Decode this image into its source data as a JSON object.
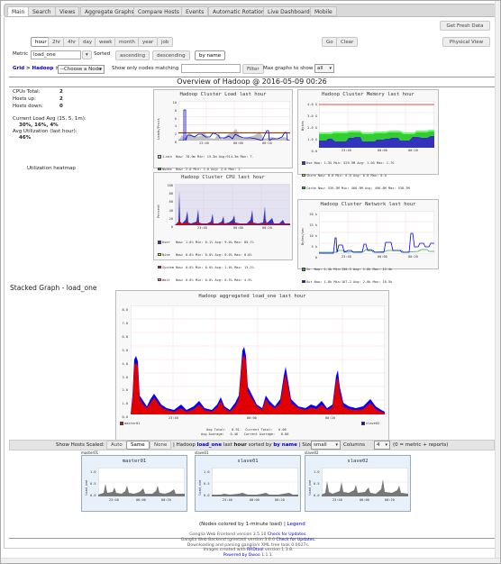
{
  "tabs": [
    "Main",
    "Search",
    "Views",
    "Aggregate Graphs",
    "Compare Hosts",
    "Events",
    "Automatic Rotation",
    "Live Dashboard",
    "Mobile"
  ],
  "get_fresh_data": "Get Fresh Data",
  "physical_view": "Physical View",
  "ranges": [
    "hour",
    "2hr",
    "4hr",
    "day",
    "week",
    "month",
    "year",
    "job"
  ],
  "go": "Go",
  "clear": "Clear",
  "metric_label": "Metric",
  "metric_value": "load_one",
  "sorted_label": "Sorted",
  "sort_options": [
    "ascending",
    "descending",
    "by name"
  ],
  "breadcrumb": {
    "grid": "Grid",
    "sep": ">",
    "cluster": "Hadoop",
    "sep2": ">",
    "node_select": "--Choose a Node"
  },
  "filter_label": "Show only nodes matching",
  "filter_button": "Filter",
  "max_graphs_label": "Max graphs to show",
  "max_graphs_value": "all",
  "overview_title": "Overview of Hadoop @ 2016-05-09 00:26",
  "stats": {
    "cpus_label": "CPUs Total:",
    "cpus": "2",
    "up_label": "Hosts up:",
    "up": "2",
    "down_label": "Hosts down:",
    "down": "0",
    "load_label": "Current Load Avg (15, 5, 1m):",
    "load": "30%, 16%, 4%",
    "util_label": "Avg Utilization (last hour):",
    "util": "46%"
  },
  "heatmap_label": "Utilization heatmap",
  "graphs": {
    "load": {
      "title": "Hadoop Cluster Load last hour",
      "ylabel": "Loads/Procs",
      "yticks": [
        "10",
        "8",
        "6",
        "4",
        "2",
        "0"
      ],
      "xticks": [
        "23:40",
        "00:00",
        "00:20"
      ],
      "legend": [
        {
          "name": "1-min",
          "color": "#c8c8c8",
          "now": "Now: 78.0m",
          "min": "Min: 15.3m",
          "avg": "Avg:914.3m",
          "max": "Max: 7."
        },
        {
          "name": "Nodes",
          "color": "#00c000",
          "now": "Now: 2.0",
          "min": "Min: 2.0",
          "avg": "Avg: 2.0",
          "max": "Max: 2"
        },
        {
          "name": "CPUs",
          "color": "#e00000",
          "now": "Now: 2.0",
          "min": "Min: 2.0",
          "avg": "Avg: 2.0",
          "max": "Max: 2"
        },
        {
          "name": "Procs",
          "color": "#0000e0",
          "now": "Now: 0.0",
          "min": "Min: 0.0",
          "avg": "Avg: 1.1",
          "max": "Max: 13."
        }
      ]
    },
    "memory": {
      "title": "Hadoop Cluster Memory last hour",
      "ylabel": "Bytes",
      "yticks": [
        "4.0 G",
        "3.0 G",
        "2.0 G",
        "1.0 G",
        "0.0"
      ],
      "xticks": [
        "23:40",
        "00:00",
        "00:20"
      ],
      "legend": [
        {
          "name": "Use",
          "color": "#3333bb",
          "now": "Now: 1.3G",
          "min": "Min: 529.9M",
          "avg": "Avg: 1.0G",
          "max": "Max: 1.7G"
        },
        {
          "name": "Share",
          "color": "#ffff00",
          "now": "Now: 0.0",
          "min": "Min: 0.0",
          "avg": "Avg: 0.0",
          "max": "Max: 0.0"
        },
        {
          "name": "Cache",
          "color": "#33cc33",
          "now": "Now: 539.3M",
          "min": "Min: 466.9M",
          "avg": "Avg: 496.8M",
          "max": "Max: 538.3M"
        },
        {
          "name": "Buffer",
          "color": "#66ff66",
          "now": "Now: 90.6M",
          "min": "Min: 76.5M",
          "avg": "Avg: 81.2M",
          "max": "Max: 90.6M"
        },
        {
          "name": "Swap",
          "color": "#9900aa",
          "now": "Now: 0.0",
          "min": "Min: 0.0",
          "avg": "Avg: 0.0",
          "max": "Max: 0.0"
        },
        {
          "name": "Total",
          "color": "#ff0000",
          "now": "Now: 3.7G",
          "min": "Min: 3.7G",
          "avg": "Avg: 3.7G",
          "max": "Max: 3.7G"
        }
      ]
    },
    "cpu": {
      "title": "Hadoop Cluster CPU last hour",
      "ylabel": "Percent",
      "yticks": [
        "100",
        "80",
        "60",
        "40",
        "20",
        "0"
      ],
      "xticks": [
        "23:40",
        "00:00",
        "00:20"
      ],
      "legend": [
        {
          "name": "User",
          "color": "#3333bb",
          "now": "Now: 1.0%",
          "min": "Min: 0.1%",
          "avg": "Avg: 9.0%",
          "max": "Max: 85.7%"
        },
        {
          "name": "Nice",
          "color": "#ffea00",
          "now": "Now: 0.0%",
          "min": "Min: 0.0%",
          "avg": "Avg: 0.0%",
          "max": "Max: 0.0%"
        },
        {
          "name": "System",
          "color": "#dd0000",
          "now": "Now: 0.8%",
          "min": "Min: 0.0%",
          "avg": "Avg: 1.0%",
          "max": "Max: 13.2%"
        },
        {
          "name": "Wait",
          "color": "#ff8a60",
          "now": "Now: 0.0%",
          "min": "Min: 0.0%",
          "avg": "Avg: 0.5%",
          "max": "Max: 4.9%"
        },
        {
          "name": "Steal",
          "color": "#990099",
          "now": "Now: 0.0%",
          "min": "Min: 0.0%",
          "avg": "Avg: 0.0%",
          "max": "Max: 0.0%"
        },
        {
          "name": "Idle",
          "color": "#e2e2f2",
          "now": "Now: 97.1%",
          "min": "Min: 5.4%",
          "avg": "Avg: 85.9%",
          "max": "Max: 99.7%"
        }
      ]
    },
    "network": {
      "title": "Hadoop Cluster Network last hour",
      "ylabel": "Bytes/sec",
      "yticks": [
        "20 k",
        "15 k",
        "10 k",
        "5 k",
        "0"
      ],
      "xticks": [
        "23:40",
        "00:00",
        "00:20"
      ],
      "legend": [
        {
          "name": "In",
          "color": "#33aa33",
          "now": "Now: 1.4k",
          "min": "Min:150.3",
          "avg": "Avg: 1.6k",
          "max": "Max: 12.4k"
        },
        {
          "name": "Out",
          "color": "#0000ff",
          "now": "Now: 1.8k",
          "min": "Min:167.2",
          "avg": "Avg: 2.0k",
          "max": "Max: 18.5k"
        }
      ]
    },
    "stacked": {
      "section_title": "Stacked Graph - load_one",
      "title": "Hadoop aggregated load_one last hour",
      "yticks": [
        "8.0",
        "7.0",
        "6.0",
        "5.0",
        "4.0",
        "3.0",
        "2.0",
        "1.0",
        "0.0"
      ],
      "xticks": [
        "23:40",
        "00:00",
        "00:20"
      ],
      "series": [
        {
          "name": "master01",
          "color": "#e00000"
        },
        {
          "name": "slave02",
          "color": "#0000ff"
        }
      ],
      "stats_line1": "Avg Total:   0.91   Current Total:   0.08",
      "stats_line2": "Avg Average:   0.46   Current Average:   0.08"
    }
  },
  "hosts_bar": {
    "show_scaled": "Show Hosts Scaled:",
    "auto": "Auto",
    "same": "Same",
    "none": "None",
    "sep": "|",
    "sorted_by_pre": "Hadoop",
    "sorted_metric": "load_one",
    "sorted_last": "last",
    "sorted_hour": "hour",
    "sorted_by": "sorted by",
    "sorted_name": "by name",
    "size_label": "Size",
    "size_value": "small",
    "columns_label": "Columns",
    "columns_value": "4",
    "columns_hint": "(0 = metric + reports)"
  },
  "hosts": [
    {
      "tag": "master01",
      "name": "master01",
      "ylabel": "load_one",
      "yticks": [
        "1.0",
        "0.5",
        "0.0"
      ],
      "xticks": [
        "23:40",
        "00:00",
        "00:20"
      ]
    },
    {
      "tag": "slave01",
      "name": "slave01",
      "ylabel": "load_one",
      "yticks": [
        "1.0",
        "0.5",
        "0.0"
      ],
      "xticks": [
        "23:40",
        "00:00",
        "00:20"
      ]
    },
    {
      "tag": "slave02",
      "name": "slave02",
      "ylabel": "load_one",
      "yticks": [
        "1.0",
        "0.5",
        "0.0"
      ],
      "xticks": [
        "23:40",
        "00:00",
        "00:20"
      ]
    }
  ],
  "colored_note": "(Nodes colored by 1-minute load)",
  "legend_link": "Legend",
  "footer": [
    {
      "text": "Ganglia Web Frontend version 3.5.10 ",
      "link": "Check for Updates."
    },
    {
      "text": "Ganglia Web Backend (gmetad) version 3.6.0 ",
      "link": "Check for Updates."
    },
    {
      "text": "Downloading and parsing ganglia's XML tree took 0.0027s.",
      "link": ""
    },
    {
      "text": "Images created with ",
      "link": "RRDtool",
      "tail": " version 1.3.8."
    },
    {
      "text": "",
      "link": "Powered by Dwoo",
      "tail": " 1.1.1."
    }
  ]
}
